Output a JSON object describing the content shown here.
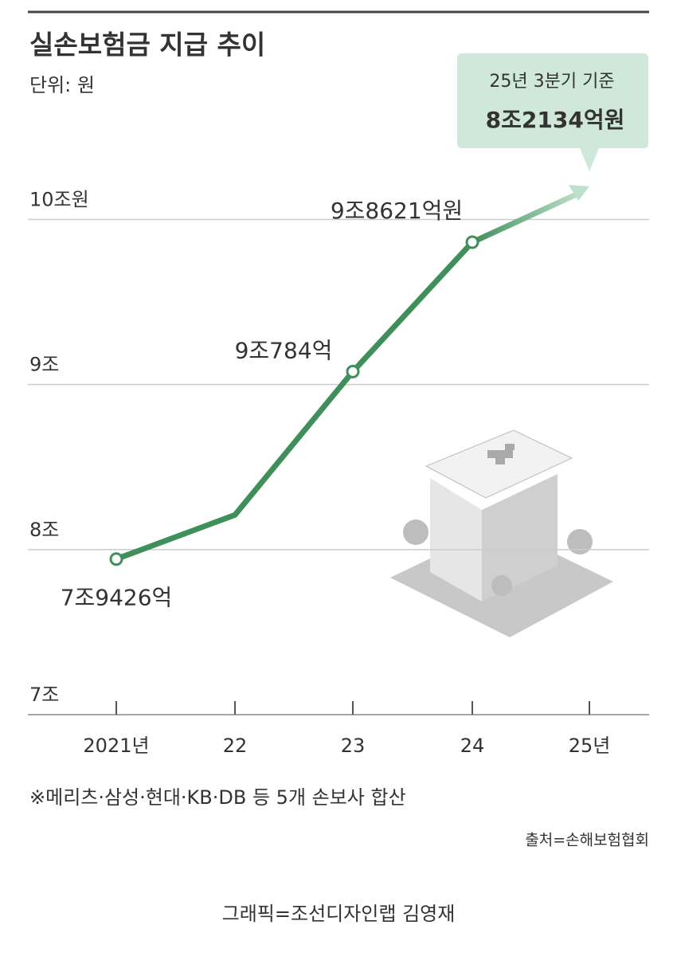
{
  "chart_data": {
    "type": "line",
    "title": "실손보험금 지급 추이",
    "subtitle": "단위: 원",
    "categories": [
      "2021년",
      "22",
      "23",
      "24",
      "25년"
    ],
    "series": [
      {
        "color": "#3f8f5a",
        "values": [
          7.9426,
          8.21,
          9.0784,
          9.8621,
          null
        ],
        "value_labels": [
          "7조9426억",
          null,
          "9조784억",
          "9조8621억원",
          null
        ]
      }
    ],
    "ylim": [
      7,
      10.2
    ],
    "yticks": [
      {
        "value": 10,
        "label": "10조원"
      },
      {
        "value": 9,
        "label": "9조"
      },
      {
        "value": 8,
        "label": "8조"
      },
      {
        "value": 7,
        "label": "7조"
      }
    ],
    "grid": true,
    "annotation": [
      "25년 3분기 기준",
      "8조2134억원"
    ],
    "footnote": "※메리츠·삼성·현대·KB·DB 등 5개 손보사 합산",
    "source": "출처=손해보험협회",
    "credit": "그래픽=조선디자인랩 김영재"
  }
}
